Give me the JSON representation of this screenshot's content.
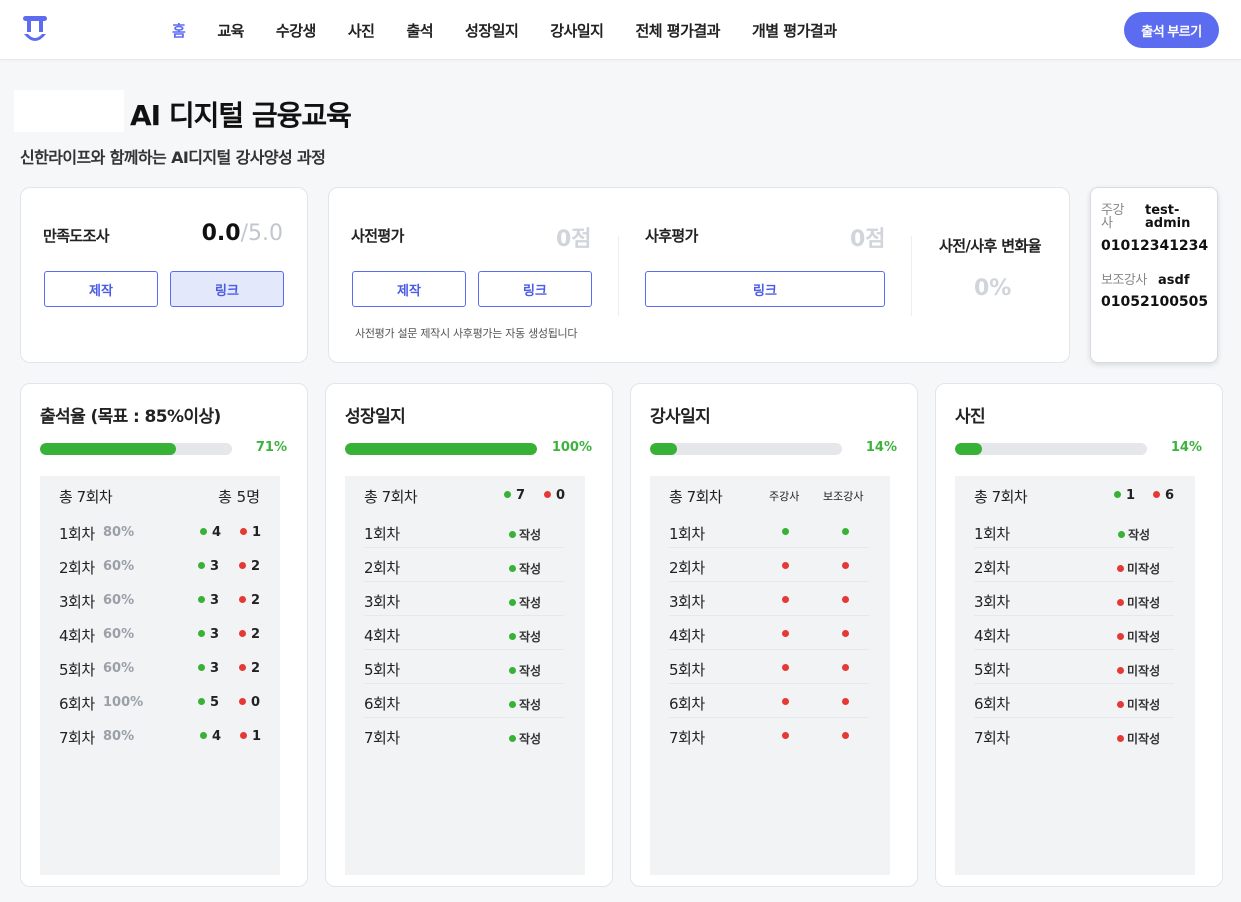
{
  "nav": {
    "items": [
      "홈",
      "교육",
      "수강생",
      "사진",
      "출석",
      "성장일지",
      "강사일지",
      "전체 평가결과",
      "개별 평가결과"
    ],
    "active": "홈",
    "cta_label": "출석 부르기"
  },
  "page": {
    "title": "AI 디지털 금융교육",
    "subtitle": "신한라이프와 함께하는 AI디지털 강사양성 과정"
  },
  "satisfaction": {
    "label": "만족도조사",
    "score": "0.0",
    "denominator": "/5.0",
    "make_label": "제작",
    "link_label": "링크"
  },
  "evaluation": {
    "pre_label": "사전평가",
    "pre_score": "0점",
    "post_label": "사후평가",
    "post_score": "0점",
    "make_label": "제작",
    "link_label": "링크",
    "post_link_label": "링크",
    "note": "사전평가 설문 제작시 사후평가는 자동 생성됩니다",
    "change_label": "사전/사후 변화율",
    "change_value": "0%"
  },
  "instructors": {
    "main_role": "주강사",
    "main_name": "test-admin",
    "main_phone": "01012341234",
    "sub_role": "보조강사",
    "sub_name": "asdf",
    "sub_phone": "01052100505"
  },
  "attendance": {
    "title": "출석율 (목표 : 85%이상)",
    "progress": 0.71,
    "pct_label": "71%",
    "total_sessions": "총 7회차",
    "total_students": "총 5명",
    "rows": [
      {
        "label": "1회차",
        "pct": "80%",
        "present": "4",
        "absent": "1"
      },
      {
        "label": "2회차",
        "pct": "60%",
        "present": "3",
        "absent": "2"
      },
      {
        "label": "3회차",
        "pct": "60%",
        "present": "3",
        "absent": "2"
      },
      {
        "label": "4회차",
        "pct": "60%",
        "present": "3",
        "absent": "2"
      },
      {
        "label": "5회차",
        "pct": "60%",
        "present": "3",
        "absent": "2"
      },
      {
        "label": "6회차",
        "pct": "100%",
        "present": "5",
        "absent": "0"
      },
      {
        "label": "7회차",
        "pct": "80%",
        "present": "4",
        "absent": "1"
      }
    ]
  },
  "growth": {
    "title": "성장일지",
    "progress": 1.0,
    "pct_label": "100%",
    "total_sessions": "총 7회차",
    "done_count": "7",
    "todo_count": "0",
    "rows": [
      {
        "label": "1회차",
        "status": "작성",
        "done": true
      },
      {
        "label": "2회차",
        "status": "작성",
        "done": true
      },
      {
        "label": "3회차",
        "status": "작성",
        "done": true
      },
      {
        "label": "4회차",
        "status": "작성",
        "done": true
      },
      {
        "label": "5회차",
        "status": "작성",
        "done": true
      },
      {
        "label": "6회차",
        "status": "작성",
        "done": true
      },
      {
        "label": "7회차",
        "status": "작성",
        "done": true
      }
    ]
  },
  "instructor_log": {
    "title": "강사일지",
    "progress": 0.14,
    "pct_label": "14%",
    "total_sessions": "총 7회차",
    "col_main": "주강사",
    "col_sub": "보조강사",
    "rows": [
      {
        "label": "1회차",
        "main": true,
        "sub": true
      },
      {
        "label": "2회차",
        "main": false,
        "sub": false
      },
      {
        "label": "3회차",
        "main": false,
        "sub": false
      },
      {
        "label": "4회차",
        "main": false,
        "sub": false
      },
      {
        "label": "5회차",
        "main": false,
        "sub": false
      },
      {
        "label": "6회차",
        "main": false,
        "sub": false
      },
      {
        "label": "7회차",
        "main": false,
        "sub": false
      }
    ]
  },
  "photos": {
    "title": "사진",
    "progress": 0.14,
    "pct_label": "14%",
    "total_sessions": "총 7회차",
    "done_count": "1",
    "todo_count": "6",
    "rows": [
      {
        "label": "1회차",
        "status": "작성",
        "done": true
      },
      {
        "label": "2회차",
        "status": "미작성",
        "done": false
      },
      {
        "label": "3회차",
        "status": "미작성",
        "done": false
      },
      {
        "label": "4회차",
        "status": "미작성",
        "done": false
      },
      {
        "label": "5회차",
        "status": "미작성",
        "done": false
      },
      {
        "label": "6회차",
        "status": "미작성",
        "done": false
      },
      {
        "label": "7회차",
        "status": "미작성",
        "done": false
      }
    ],
    "colors": {
      "done": "#37b136",
      "todo": "#e53935",
      "accent": "#5b6cf0"
    }
  }
}
